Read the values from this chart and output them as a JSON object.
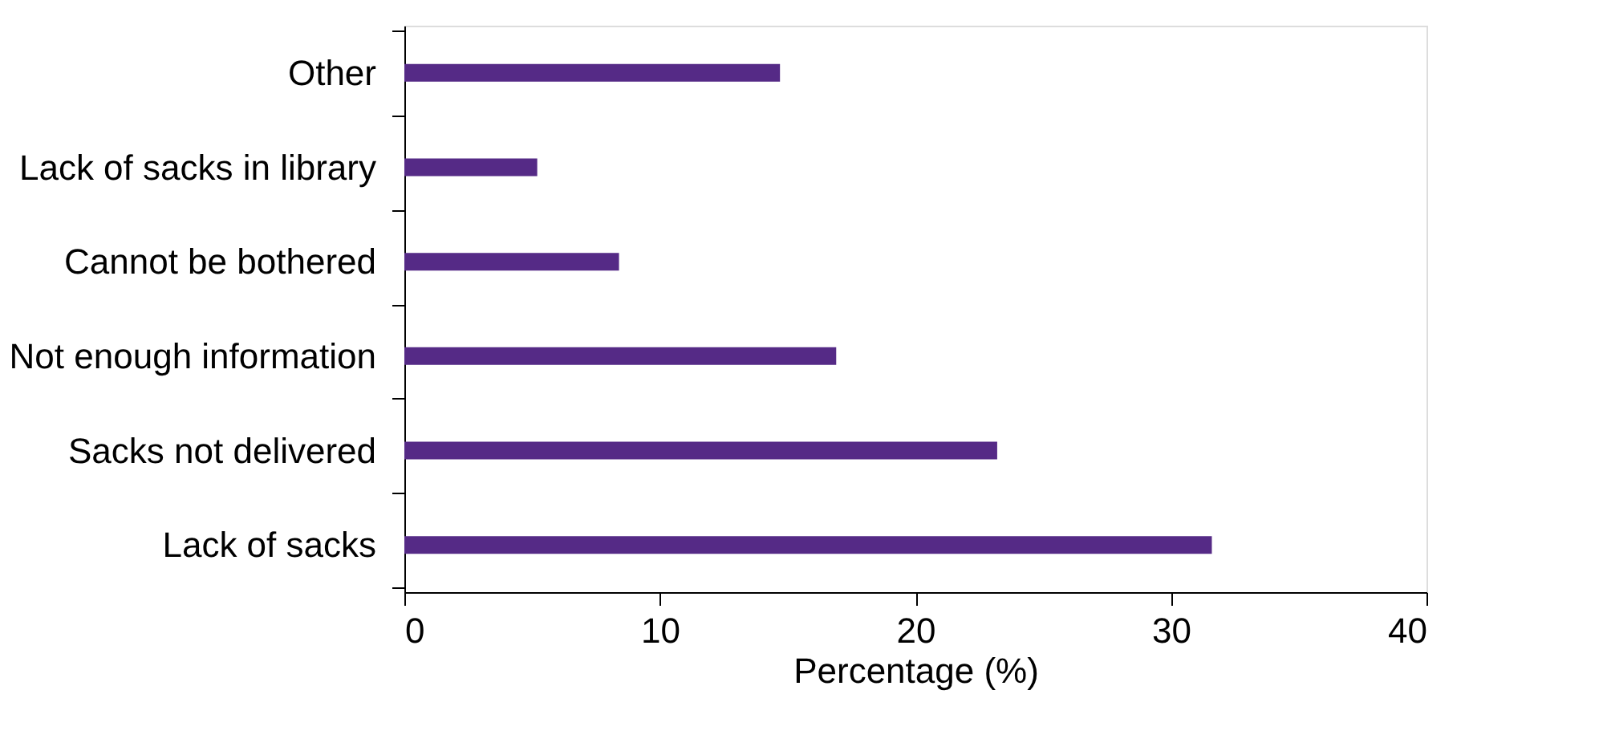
{
  "chart_data": {
    "type": "bar",
    "orientation": "horizontal",
    "xlabel": "Percentage (%)",
    "categories": [
      "Other",
      "Lack of sacks in library",
      "Cannot be bothered",
      "Not enough information",
      "Sacks not delivered",
      "Lack of sacks"
    ],
    "values": [
      14.7,
      5.2,
      8.4,
      16.9,
      23.2,
      31.6
    ],
    "color": "#552a86",
    "xlim": [
      0,
      40
    ],
    "xticks": [
      0,
      10,
      20,
      30,
      40
    ],
    "grid": false
  }
}
